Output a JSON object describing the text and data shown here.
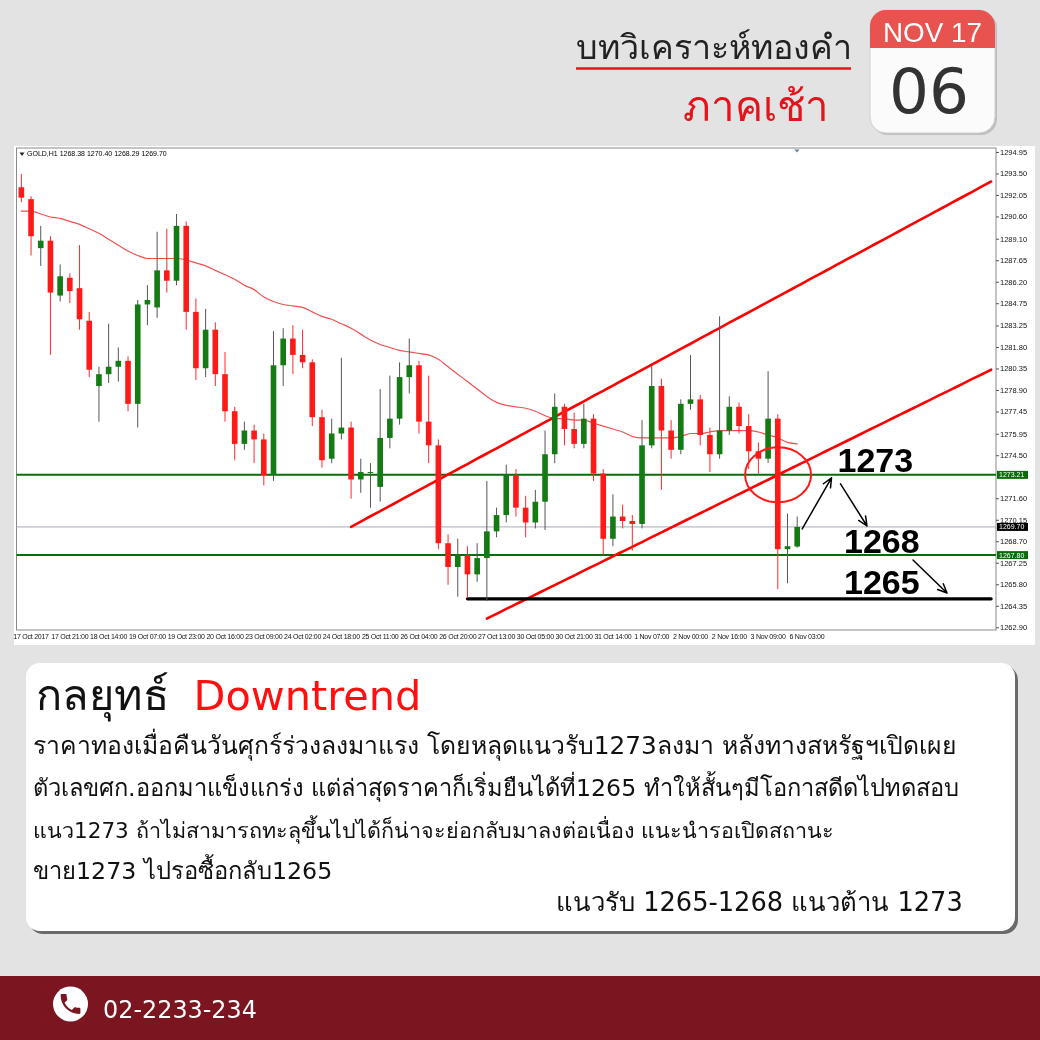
{
  "chart_data": {
    "type": "candlestick",
    "title": "บทวิเคราะห์ทองคำ",
    "subtitle": "ภาคเช้า",
    "annotations": [
      "GOLD,H1 1268.38 1270.40 1268.29 1269.70",
      "NOV 17",
      "06",
      "กลยุทธ์",
      "Downtrend",
      "ราคาทองเมื่อคืนวันศุกร์ร่วงลงมาแรง โดยหลุดแนวรับ1273ลงมา หลังทางสหรัฐฯเปิดเผย",
      "ตัวเลขศก.ออกมาแข็งแกร่ง แต่ล่าสุดราคาก็เริ่มยืนได้ที่1265 ทำให้สั้นๆมีโอกาสดีดไปทดสอบ",
      "แนว1273 ถ้าไม่สามารถทะลุขึ้นไปได้ก็น่าจะย่อกลับมาลงต่อเนื่อง แนะนำรอเปิดสถานะ",
      "ขาย1273 ไปรอซื้อกลับ1265",
      "แนวรับ 1265-1268 แนวต้าน 1273",
      "02-2233-234",
      {
        "text": "1273",
        "y": 1273.21
      },
      "1268",
      "1265"
    ],
    "categories": [
      null,
      "17 Oct 2017",
      null,
      null,
      null,
      "17 Oct 21:00",
      null,
      null,
      null,
      "18 Oct 14:00",
      null,
      null,
      null,
      "19 Oct 07:00",
      null,
      null,
      null,
      "19 Oct 23:00",
      null,
      null,
      null,
      "20 Oct 16:00",
      null,
      null,
      null,
      "23 Oct 09:00",
      null,
      null,
      null,
      "24 Oct 02:00",
      null,
      null,
      null,
      "24 Oct 18:00",
      null,
      null,
      null,
      "25 Oct 11:00",
      null,
      null,
      null,
      "26 Oct 04:00",
      null,
      null,
      null,
      "26 Oct 20:00",
      null,
      null,
      null,
      "27 Oct 13:00",
      null,
      null,
      null,
      "30 Oct 05:00",
      null,
      null,
      null,
      "30 Oct 21:00",
      null,
      null,
      null,
      "31 Oct 14:00",
      null,
      null,
      null,
      "1 Nov 07:00",
      null,
      null,
      null,
      "2 Nov 00:00",
      null,
      null,
      null,
      "2 Nov 16:00",
      null,
      null,
      null,
      "3 Nov 09:00",
      null,
      null,
      null,
      "6 Nov 03:00",
      null,
      null,
      null,
      null,
      null,
      null,
      null,
      null,
      null,
      null,
      null,
      null,
      null,
      null,
      null,
      null,
      null,
      null,
      null
    ],
    "ohlc": [
      [
        1292.6,
        1293.5,
        1291.6,
        1291.9
      ],
      [
        1291.8,
        1292.0,
        1288.0,
        1289.3
      ],
      [
        1288.5,
        1290.0,
        1287.3,
        1289.0
      ],
      [
        1289.0,
        1289.3,
        1281.3,
        1285.5
      ],
      [
        1285.3,
        1287.4,
        1284.9,
        1286.6
      ],
      [
        1286.5,
        1286.8,
        1284.8,
        1285.6
      ],
      [
        1285.8,
        1288.7,
        1283.0,
        1283.7
      ],
      [
        1283.6,
        1284.2,
        1279.8,
        1280.3
      ],
      [
        1279.2,
        1280.5,
        1276.8,
        1280.0
      ],
      [
        1280.0,
        1283.4,
        1279.4,
        1280.5
      ],
      [
        1280.5,
        1281.8,
        1279.5,
        1280.9
      ],
      [
        1280.9,
        1281.2,
        1277.5,
        1278.0
      ],
      [
        1278.0,
        1285.0,
        1276.4,
        1284.7
      ],
      [
        1284.7,
        1286.0,
        1283.3,
        1285.0
      ],
      [
        1284.5,
        1289.6,
        1283.8,
        1287.0
      ],
      [
        1287.0,
        1289.8,
        1285.5,
        1286.3
      ],
      [
        1286.3,
        1290.8,
        1286.0,
        1290.0
      ],
      [
        1290.0,
        1290.3,
        1283.0,
        1284.2
      ],
      [
        1284.2,
        1285.1,
        1279.6,
        1280.4
      ],
      [
        1280.4,
        1284.4,
        1279.8,
        1283.0
      ],
      [
        1283.0,
        1283.5,
        1279.2,
        1280.0
      ],
      [
        1280.0,
        1281.5,
        1276.8,
        1277.5
      ],
      [
        1277.5,
        1277.8,
        1274.2,
        1275.3
      ],
      [
        1275.3,
        1276.8,
        1274.9,
        1276.2
      ],
      [
        1276.2,
        1276.6,
        1274.0,
        1275.6
      ],
      [
        1275.6,
        1276.0,
        1272.5,
        1273.2
      ],
      [
        1273.2,
        1282.9,
        1272.8,
        1280.6
      ],
      [
        1280.6,
        1283.1,
        1279.2,
        1282.4
      ],
      [
        1282.4,
        1283.3,
        1280.0,
        1281.3
      ],
      [
        1281.3,
        1283.0,
        1280.4,
        1280.8
      ],
      [
        1280.8,
        1281.0,
        1276.5,
        1277.1
      ],
      [
        1277.1,
        1277.6,
        1273.7,
        1274.2
      ],
      [
        1274.3,
        1277.0,
        1274.0,
        1276.0
      ],
      [
        1276.0,
        1281.1,
        1275.6,
        1276.4
      ],
      [
        1276.4,
        1276.8,
        1271.6,
        1272.9
      ],
      [
        1272.9,
        1274.3,
        1272.0,
        1273.4
      ],
      [
        1273.4,
        1274.0,
        1271.0,
        1273.4
      ],
      [
        1272.4,
        1279.0,
        1271.4,
        1275.7
      ],
      [
        1275.7,
        1279.9,
        1275.0,
        1277.0
      ],
      [
        1277.0,
        1280.8,
        1276.6,
        1279.8
      ],
      [
        1279.8,
        1282.4,
        1278.7,
        1280.6
      ],
      [
        1280.6,
        1280.9,
        1276.0,
        1276.8
      ],
      [
        1276.8,
        1279.9,
        1274.0,
        1275.2
      ],
      [
        1275.2,
        1275.6,
        1268.2,
        1268.6
      ],
      [
        1268.6,
        1269.2,
        1265.8,
        1267.0
      ],
      [
        1267.0,
        1268.9,
        1265.0,
        1267.8
      ],
      [
        1267.8,
        1268.4,
        1264.9,
        1266.5
      ],
      [
        1266.5,
        1268.6,
        1266.0,
        1267.6
      ],
      [
        1267.6,
        1272.8,
        1264.7,
        1269.4
      ],
      [
        1269.4,
        1271.0,
        1269.0,
        1270.5
      ],
      [
        1270.5,
        1273.9,
        1270.0,
        1273.2
      ],
      [
        1273.2,
        1273.6,
        1270.4,
        1271.0
      ],
      [
        1271.0,
        1271.8,
        1269.0,
        1270.0
      ],
      [
        1270.0,
        1272.2,
        1269.6,
        1271.4
      ],
      [
        1271.4,
        1276.2,
        1269.5,
        1274.6
      ],
      [
        1274.6,
        1278.7,
        1274.0,
        1277.8
      ],
      [
        1277.8,
        1278.0,
        1275.2,
        1276.3
      ],
      [
        1276.3,
        1277.4,
        1275.0,
        1275.3
      ],
      [
        1275.3,
        1278.0,
        1275.0,
        1277.0
      ],
      [
        1277.0,
        1277.3,
        1272.8,
        1273.3
      ],
      [
        1273.3,
        1273.6,
        1267.8,
        1268.9
      ],
      [
        1268.9,
        1271.9,
        1268.4,
        1270.4
      ],
      [
        1270.4,
        1271.2,
        1269.6,
        1270.1
      ],
      [
        1270.1,
        1270.5,
        1268.1,
        1269.9
      ],
      [
        1269.9,
        1276.9,
        1269.6,
        1275.2
      ],
      [
        1275.2,
        1280.6,
        1275.0,
        1279.2
      ],
      [
        1279.2,
        1279.7,
        1272.2,
        1276.2
      ],
      [
        1276.2,
        1276.9,
        1274.3,
        1274.9
      ],
      [
        1274.9,
        1278.3,
        1274.6,
        1278.0
      ],
      [
        1278.0,
        1281.3,
        1277.6,
        1278.3
      ],
      [
        1278.3,
        1278.6,
        1275.2,
        1275.9
      ],
      [
        1275.9,
        1276.4,
        1273.4,
        1274.6
      ],
      [
        1274.6,
        1283.9,
        1274.3,
        1276.2
      ],
      [
        1276.2,
        1278.5,
        1275.9,
        1277.8
      ],
      [
        1277.8,
        1278.1,
        1276.0,
        1276.5
      ],
      [
        1276.5,
        1277.3,
        1273.6,
        1274.8
      ],
      [
        1274.8,
        1275.4,
        1273.3,
        1274.3
      ],
      [
        1274.3,
        1280.2,
        1274.0,
        1277.0
      ],
      [
        1277.0,
        1277.3,
        1265.5,
        1268.2
      ],
      [
        1268.2,
        1270.6,
        1265.9,
        1268.4
      ],
      [
        1268.38,
        1270.4,
        1268.29,
        1269.7
      ],
      null,
      null,
      null,
      null,
      null,
      null,
      null,
      null,
      null,
      null,
      null,
      null,
      null,
      null,
      null,
      null,
      null,
      null,
      null,
      null
    ],
    "series": [
      {
        "type": "line",
        "color": "#f05050",
        "values": [
          1291.0,
          1291.0,
          1290.8,
          1290.6,
          1290.5,
          1290.3,
          1290.1,
          1289.8,
          1289.5,
          1289.1,
          1288.7,
          1288.3,
          1288.0,
          1287.8,
          1287.8,
          1287.8,
          1287.8,
          1287.7,
          1287.5,
          1287.3,
          1287.0,
          1286.7,
          1286.4,
          1286.0,
          1285.7,
          1285.2,
          1284.9,
          1284.7,
          1284.6,
          1284.5,
          1284.2,
          1283.9,
          1283.7,
          1283.4,
          1283.1,
          1282.7,
          1282.3,
          1282.0,
          1281.8,
          1281.6,
          1281.5,
          1281.4,
          1281.3,
          1281.0,
          1280.5,
          1280.0,
          1279.5,
          1279.0,
          1278.5,
          1278.1,
          1277.9,
          1277.8,
          1277.7,
          1277.5,
          1277.2,
          1277.0,
          1277.0,
          1276.9,
          1276.9,
          1276.7,
          1276.5,
          1276.3,
          1276.1,
          1275.8,
          1275.7,
          1275.7,
          1275.7,
          1275.7,
          1275.8,
          1276.0,
          1276.0,
          1276.1,
          1276.2,
          1276.2,
          1276.2,
          1276.2,
          1276.1,
          1275.9,
          1275.7,
          1275.4,
          1275.3,
          null,
          null,
          null,
          null,
          null,
          null,
          null,
          null,
          null,
          null,
          null,
          null,
          null,
          null,
          null,
          null,
          null,
          null,
          null,
          null
        ]
      },
      {
        "type": "line",
        "color": "#ff0000",
        "values": [
          null,
          null,
          null,
          null,
          null,
          null,
          null,
          null,
          null,
          null,
          null,
          null,
          null,
          null,
          null,
          null,
          null,
          null,
          null,
          null,
          null,
          null,
          null,
          null,
          null,
          null,
          null,
          null,
          null,
          null,
          null,
          null,
          null,
          null,
          1269.71,
          1270.06,
          1270.42,
          1270.77,
          1271.12,
          1271.47,
          1271.83,
          1272.18,
          1272.53,
          1272.88,
          1273.24,
          1273.59,
          1273.94,
          1274.3,
          1274.65,
          1275.0,
          1275.35,
          1275.71,
          1276.06,
          1276.41,
          1276.76,
          1277.12,
          1277.47,
          1277.82,
          1278.17,
          1278.53,
          1278.88,
          1279.23,
          1279.59,
          1279.94,
          1280.29,
          1280.64,
          1281.0,
          1281.35,
          1281.7,
          1282.05,
          1282.41,
          1282.76,
          1283.11,
          1283.47,
          1283.82,
          1284.17,
          1284.52,
          1284.88,
          1285.23,
          1285.58,
          1285.93,
          1286.29,
          1286.64,
          1286.99,
          1287.35,
          1287.7,
          1288.05,
          1288.4,
          1288.76,
          1289.11,
          1289.46,
          1289.81,
          1290.17,
          1290.52,
          1290.87,
          1291.22,
          1291.58,
          1291.93,
          1292.28,
          1292.64,
          1292.99
        ]
      },
      {
        "type": "line",
        "color": "#ff0000",
        "values": [
          null,
          null,
          null,
          null,
          null,
          null,
          null,
          null,
          null,
          null,
          null,
          null,
          null,
          null,
          null,
          null,
          null,
          null,
          null,
          null,
          null,
          null,
          null,
          null,
          null,
          null,
          null,
          null,
          null,
          null,
          null,
          null,
          null,
          null,
          null,
          null,
          null,
          null,
          null,
          null,
          null,
          null,
          null,
          null,
          null,
          null,
          null,
          null,
          1263.52,
          1263.84,
          1264.17,
          1264.49,
          1264.81,
          1265.13,
          1265.46,
          1265.78,
          1266.1,
          1266.42,
          1266.75,
          1267.07,
          1267.39,
          1267.72,
          1268.04,
          1268.36,
          1268.68,
          1269.01,
          1269.33,
          1269.65,
          1269.98,
          1270.3,
          1270.62,
          1270.94,
          1271.27,
          1271.59,
          1271.91,
          1272.23,
          1272.56,
          1272.88,
          1273.2,
          1273.53,
          1273.85,
          1274.17,
          1274.49,
          1274.82,
          1275.14,
          1275.46,
          1275.78,
          1276.11,
          1276.43,
          1276.75,
          1277.08,
          1277.4,
          1277.72,
          1278.04,
          1278.37,
          1278.69,
          1279.01,
          1279.33,
          1279.66,
          1279.98,
          1280.3
        ]
      },
      {
        "type": "line",
        "color": "#000000",
        "values": [
          null,
          null,
          null,
          null,
          null,
          null,
          null,
          null,
          null,
          null,
          null,
          null,
          null,
          null,
          null,
          null,
          null,
          null,
          null,
          null,
          null,
          null,
          null,
          null,
          null,
          null,
          null,
          null,
          null,
          null,
          null,
          null,
          null,
          null,
          null,
          null,
          null,
          null,
          null,
          null,
          null,
          null,
          null,
          null,
          null,
          null,
          1264.85,
          1264.85,
          1264.85,
          1264.85,
          1264.85,
          1264.85,
          1264.85,
          1264.85,
          1264.85,
          1264.85,
          1264.85,
          1264.85,
          1264.85,
          1264.85,
          1264.85,
          1264.85,
          1264.85,
          1264.85,
          1264.85,
          1264.85,
          1264.85,
          1264.85,
          1264.85,
          1264.85,
          1264.85,
          1264.85,
          1264.85,
          1264.85,
          1264.85,
          1264.85,
          1264.85,
          1264.85,
          1264.85,
          1264.85,
          1264.85,
          1264.85,
          1264.85,
          1264.85,
          1264.85,
          1264.85,
          1264.85,
          1264.85,
          1264.85,
          1264.85,
          1264.85,
          1264.85,
          1264.85,
          1264.85,
          1264.85,
          1264.85,
          1264.85,
          1264.85,
          1264.85,
          1264.85,
          1264.85
        ]
      }
    ],
    "ref_lines": [
      {
        "axis": "y",
        "value": 1273.21,
        "label": "1273.21",
        "color": "#0b6b0b"
      },
      {
        "axis": "y",
        "value": 1267.8,
        "label": "1267.80",
        "color": "#0b6b0b"
      },
      {
        "axis": "y",
        "value": 1269.7,
        "label": "1269.70",
        "color": "#a8a8b8"
      }
    ],
    "ylim": [
      1262.75,
      1295.25
    ],
    "yticks": [
      {
        "value": 1294.95,
        "label": "1294.95"
      },
      {
        "value": 1293.5,
        "label": "1293.50"
      },
      {
        "value": 1292.05,
        "label": "1292.05"
      },
      {
        "value": 1290.6,
        "label": "1290.60"
      },
      {
        "value": 1289.1,
        "label": "1289.10"
      },
      {
        "value": 1287.65,
        "label": "1287.65"
      },
      {
        "value": 1286.2,
        "label": "1286.20"
      },
      {
        "value": 1284.75,
        "label": "1284.75"
      },
      {
        "value": 1283.25,
        "label": "1283.25"
      },
      {
        "value": 1281.8,
        "label": "1281.80"
      },
      {
        "value": 1280.35,
        "label": "1280.35"
      },
      {
        "value": 1278.9,
        "label": "1278.90"
      },
      {
        "value": 1277.45,
        "label": "1277.45"
      },
      {
        "value": 1275.95,
        "label": "1275.95"
      },
      {
        "value": 1274.5,
        "label": "1274.50"
      },
      {
        "value": 1271.6,
        "label": "1271.60"
      },
      {
        "value": 1270.15,
        "label": "1270.15"
      },
      {
        "value": 1268.7,
        "label": "1268.70"
      },
      {
        "value": 1267.25,
        "label": "1267.25"
      },
      {
        "value": 1265.8,
        "label": "1265.80"
      },
      {
        "value": 1264.35,
        "label": "1264.35"
      },
      {
        "value": 1262.9,
        "label": "1262.90"
      }
    ]
  }
}
